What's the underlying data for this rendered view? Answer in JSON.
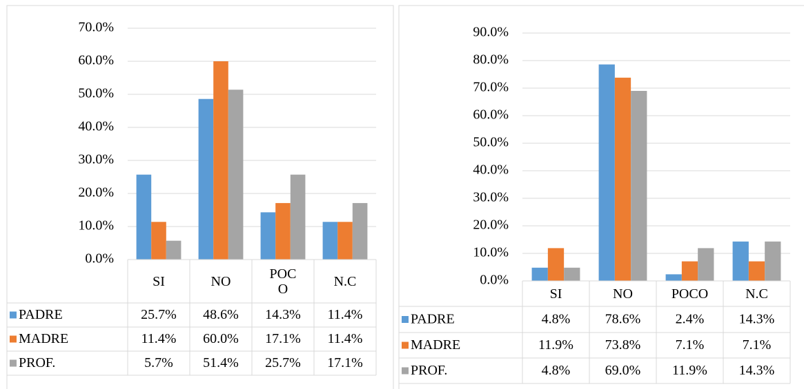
{
  "chart_data": [
    {
      "type": "bar",
      "categories": [
        "SI",
        "NO",
        "POCO",
        "N.C"
      ],
      "series": [
        {
          "name": "PADRE",
          "color": "#5b9bd5",
          "values": [
            25.7,
            48.6,
            14.3,
            11.4
          ],
          "value_labels": [
            "25.7%",
            "48.6%",
            "14.3%",
            "11.4%"
          ]
        },
        {
          "name": "MADRE",
          "color": "#ed7d31",
          "values": [
            11.4,
            60.0,
            17.1,
            11.4
          ],
          "value_labels": [
            "11.4%",
            "60.0%",
            "17.1%",
            "11.4%"
          ]
        },
        {
          "name": "PROF.",
          "color": "#a5a5a5",
          "values": [
            5.7,
            51.4,
            25.7,
            17.1
          ],
          "value_labels": [
            "5.7%",
            "51.4%",
            "25.7%",
            "17.1%"
          ]
        }
      ],
      "ylim": [
        0,
        70
      ],
      "yticks": [
        {
          "value": 0,
          "label": "0.0%"
        },
        {
          "value": 10,
          "label": "10.0%"
        },
        {
          "value": 20,
          "label": "20.0%"
        },
        {
          "value": 30,
          "label": "30.0%"
        },
        {
          "value": 40,
          "label": "40.0%"
        },
        {
          "value": 50,
          "label": "50.0%"
        },
        {
          "value": 60,
          "label": "60.0%"
        },
        {
          "value": 70,
          "label": "70.0%"
        }
      ],
      "grid": true
    },
    {
      "type": "bar",
      "categories": [
        "SI",
        "NO",
        "POCO",
        "N.C"
      ],
      "series": [
        {
          "name": "PADRE",
          "color": "#5b9bd5",
          "values": [
            4.8,
            78.6,
            2.4,
            14.3
          ],
          "value_labels": [
            "4.8%",
            "78.6%",
            "2.4%",
            "14.3%"
          ]
        },
        {
          "name": "MADRE",
          "color": "#ed7d31",
          "values": [
            11.9,
            73.8,
            7.1,
            7.1
          ],
          "value_labels": [
            "11.9%",
            "73.8%",
            "7.1%",
            "7.1%"
          ]
        },
        {
          "name": "PROF.",
          "color": "#a5a5a5",
          "values": [
            4.8,
            69.0,
            11.9,
            14.3
          ],
          "value_labels": [
            "4.8%",
            "69.0%",
            "11.9%",
            "14.3%"
          ]
        }
      ],
      "ylim": [
        0,
        90
      ],
      "yticks": [
        {
          "value": 0,
          "label": "0.0%"
        },
        {
          "value": 10,
          "label": "10.0%"
        },
        {
          "value": 20,
          "label": "20.0%"
        },
        {
          "value": 30,
          "label": "30.0%"
        },
        {
          "value": 40,
          "label": "40.0%"
        },
        {
          "value": 50,
          "label": "50.0%"
        },
        {
          "value": 60,
          "label": "60.0%"
        },
        {
          "value": 70,
          "label": "70.0%"
        },
        {
          "value": 80,
          "label": "80.0%"
        },
        {
          "value": 90,
          "label": "90.0%"
        }
      ],
      "grid": true
    }
  ]
}
